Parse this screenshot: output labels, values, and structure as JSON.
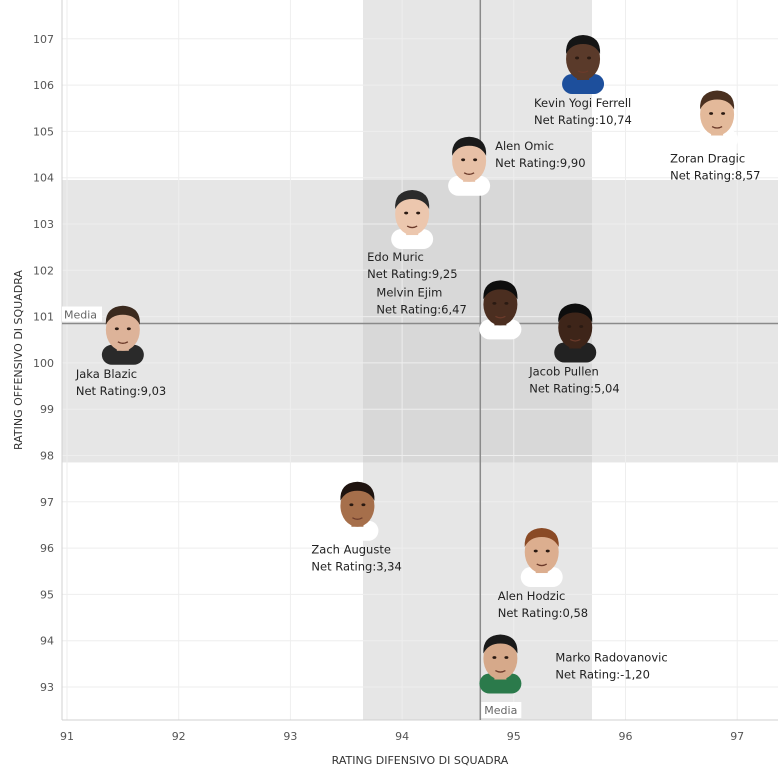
{
  "chart_data": {
    "type": "scatter",
    "xlabel": "RATING DIFENSIVO DI SQUADRA",
    "ylabel": "RATING OFFENSIVO DI SQUADRA",
    "xlim": [
      90.95,
      97.35
    ],
    "ylim": [
      92.35,
      107.7
    ],
    "x_ticks": [
      "91",
      "92",
      "93",
      "94",
      "95",
      "96",
      "97"
    ],
    "y_ticks": [
      "93",
      "94",
      "95",
      "96",
      "97",
      "98",
      "99",
      "100",
      "101",
      "102",
      "103",
      "104",
      "105",
      "106",
      "107"
    ],
    "grid": true,
    "reference_lines": {
      "x_label": "Media",
      "y_label": "Media",
      "x_value": 94.7,
      "y_value": 100.85
    },
    "bands": {
      "x_range": [
        93.65,
        95.7
      ],
      "y_range": [
        97.85,
        103.95
      ]
    },
    "colors": {
      "band": "#e6e6e6",
      "band_overlap": "#d8d8d8",
      "ref_line": "#8a8a8a",
      "grid": "#eeeeee"
    },
    "points": [
      {
        "name": "Kevin Yogi Ferrell",
        "x": 95.62,
        "y": 106.5,
        "net_label": "Net Rating:10,74",
        "skin": "#5a3a2a",
        "hair": "#151515",
        "shirt": "#1d4f9c"
      },
      {
        "name": "Zoran Dragic",
        "x": 96.82,
        "y": 105.3,
        "net_label": "Net Rating:8,57",
        "skin": "#e3b99a",
        "hair": "#4a3020",
        "shirt": "#ffffff"
      },
      {
        "name": "Alen Omic",
        "x": 94.6,
        "y": 104.3,
        "net_label": "Net Rating:9,90",
        "skin": "#e7c0a6",
        "hair": "#1a1a1a",
        "shirt": "#ffffff"
      },
      {
        "name": "Edo Muric",
        "x": 94.09,
        "y": 103.15,
        "net_label": "Net Rating:9,25",
        "skin": "#ecc7ae",
        "hair": "#2b2b2b",
        "shirt": "#ffffff"
      },
      {
        "name": "Melvin Ejim",
        "x": 94.88,
        "y": 101.2,
        "net_label": "Net Rating:6,47",
        "skin": "#4b2e20",
        "hair": "#0e0e0e",
        "shirt": "#ffffff"
      },
      {
        "name": "Jaka Blazic",
        "x": 91.5,
        "y": 100.65,
        "net_label": "Net Rating:9,03",
        "skin": "#ddb399",
        "hair": "#3b2a1e",
        "shirt": "#2a2a2a"
      },
      {
        "name": "Jacob Pullen",
        "x": 95.55,
        "y": 100.7,
        "net_label": "Net Rating:5,04",
        "skin": "#3e2519",
        "hair": "#0e0e0e",
        "shirt": "#222222"
      },
      {
        "name": "Zach Auguste",
        "x": 93.6,
        "y": 96.85,
        "net_label": "Net Rating:3,34",
        "skin": "#a66f4b",
        "hair": "#1f1410",
        "shirt": "#ffffff"
      },
      {
        "name": "Alen Hodzic",
        "x": 95.25,
        "y": 95.85,
        "net_label": "Net Rating:0,58",
        "skin": "#dcae8f",
        "hair": "#8a4a25",
        "shirt": "#ffffff"
      },
      {
        "name": "Marko Radovanovic",
        "x": 94.88,
        "y": 93.55,
        "net_label": "Net Rating:-1,20",
        "skin": "#d6a98a",
        "hair": "#1a1a1a",
        "shirt": "#2b7a4b"
      }
    ]
  }
}
